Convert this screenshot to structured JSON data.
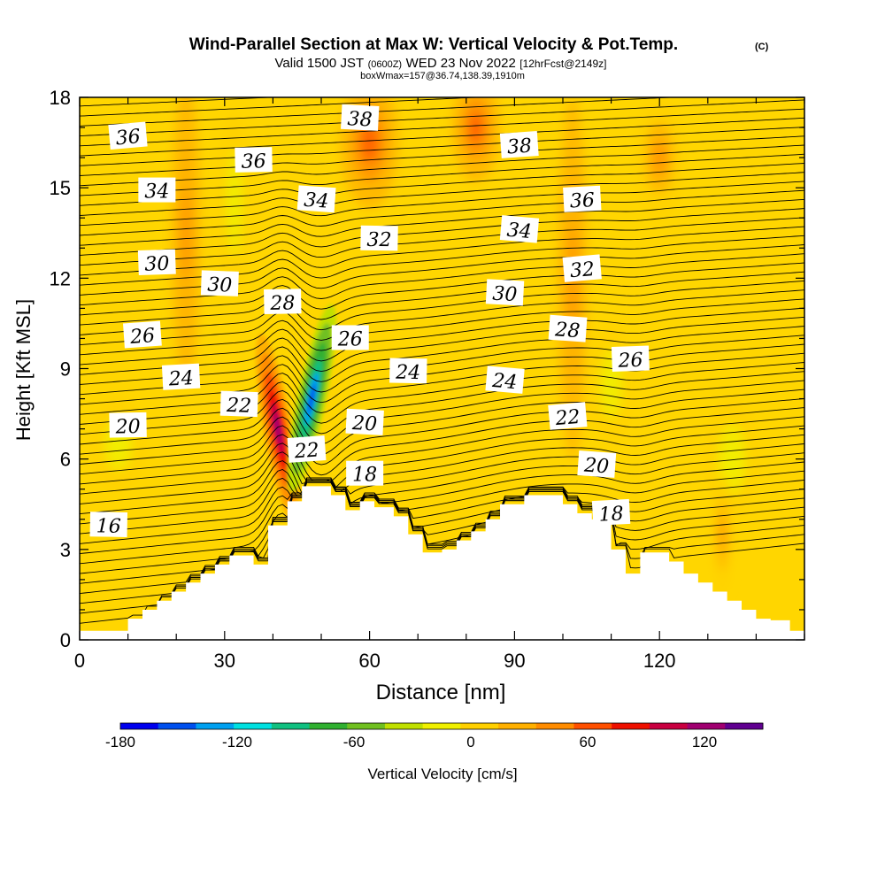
{
  "chart_data": {
    "type": "heatmap",
    "title": "Wind-Parallel Section at Max W: Vertical Velocity & Pot.Temp.",
    "title_mark": "(C)",
    "subtitle": {
      "valid_prefix": "Valid 1500 JST",
      "utc": "(0600Z)",
      "date": "WED 23 Nov 2022",
      "forecast": "[12hrFcst@2149z]"
    },
    "subtitle2": "boxWmax=157@36.74,138.39,1910m",
    "xlabel": "Distance [nm]",
    "ylabel": "Height [Kft MSL]",
    "xlim": [
      0,
      150
    ],
    "ylim": [
      0,
      18
    ],
    "xticks": [
      0,
      30,
      60,
      90,
      120
    ],
    "yticks": [
      0,
      3,
      6,
      9,
      12,
      15,
      18
    ],
    "colorbar": {
      "label": "Vertical Velocity [cm/s]",
      "range": [
        -180,
        150
      ],
      "ticks": [
        -180,
        -120,
        -60,
        0,
        60,
        120
      ],
      "colors": [
        "#0000ee",
        "#0050ee",
        "#00a0f0",
        "#00e0e0",
        "#10c080",
        "#30b030",
        "#70c020",
        "#c0e000",
        "#f0f000",
        "#ffd000",
        "#ffb000",
        "#ff8c00",
        "#ff5000",
        "#ee1000",
        "#c80040",
        "#a00070",
        "#600090"
      ]
    },
    "terrain": [
      [
        0,
        0.3
      ],
      [
        10,
        0.3
      ],
      [
        10,
        0.7
      ],
      [
        13,
        0.7
      ],
      [
        13,
        1.0
      ],
      [
        16,
        1.0
      ],
      [
        16,
        1.3
      ],
      [
        19,
        1.3
      ],
      [
        19,
        1.6
      ],
      [
        22,
        1.6
      ],
      [
        22,
        1.9
      ],
      [
        25,
        1.9
      ],
      [
        25,
        2.2
      ],
      [
        28,
        2.2
      ],
      [
        28,
        2.5
      ],
      [
        31,
        2.5
      ],
      [
        31,
        2.8
      ],
      [
        36,
        2.8
      ],
      [
        36,
        2.5
      ],
      [
        39,
        2.5
      ],
      [
        39,
        3.8
      ],
      [
        43,
        3.8
      ],
      [
        43,
        4.6
      ],
      [
        46,
        4.6
      ],
      [
        46,
        5.1
      ],
      [
        52,
        5.1
      ],
      [
        52,
        4.8
      ],
      [
        55,
        4.8
      ],
      [
        55,
        4.3
      ],
      [
        58,
        4.3
      ],
      [
        58,
        4.6
      ],
      [
        61,
        4.6
      ],
      [
        61,
        4.4
      ],
      [
        65,
        4.4
      ],
      [
        65,
        4.1
      ],
      [
        68,
        4.1
      ],
      [
        68,
        3.5
      ],
      [
        71,
        3.5
      ],
      [
        71,
        2.9
      ],
      [
        75,
        2.9
      ],
      [
        75,
        3.0
      ],
      [
        78,
        3.0
      ],
      [
        78,
        3.3
      ],
      [
        81,
        3.3
      ],
      [
        81,
        3.6
      ],
      [
        84,
        3.6
      ],
      [
        84,
        4.0
      ],
      [
        87,
        4.0
      ],
      [
        87,
        4.5
      ],
      [
        92,
        4.5
      ],
      [
        92,
        4.8
      ],
      [
        100,
        4.8
      ],
      [
        100,
        4.5
      ],
      [
        103,
        4.5
      ],
      [
        103,
        4.2
      ],
      [
        106,
        4.2
      ],
      [
        106,
        4.0
      ],
      [
        110,
        4.0
      ],
      [
        110,
        3.0
      ],
      [
        113,
        3.0
      ],
      [
        113,
        2.2
      ],
      [
        116,
        2.2
      ],
      [
        116,
        2.9
      ],
      [
        122,
        2.9
      ],
      [
        122,
        2.6
      ],
      [
        125,
        2.6
      ],
      [
        125,
        2.2
      ],
      [
        128,
        2.2
      ],
      [
        128,
        1.9
      ],
      [
        131,
        1.9
      ],
      [
        131,
        1.6
      ],
      [
        134,
        1.6
      ],
      [
        134,
        1.3
      ],
      [
        137,
        1.3
      ],
      [
        137,
        1.0
      ],
      [
        140,
        1.0
      ],
      [
        140,
        0.7
      ],
      [
        143,
        0.7
      ],
      [
        143,
        0.65
      ],
      [
        147,
        0.65
      ],
      [
        147,
        0.3
      ],
      [
        150,
        0.3
      ]
    ],
    "w_features": [
      {
        "x": 41,
        "y": 7.0,
        "rx": 3.0,
        "ry": 3.2,
        "w": 120
      },
      {
        "x": 48,
        "y": 8.0,
        "rx": 3.0,
        "ry": 3.2,
        "w": -150
      },
      {
        "x": 60,
        "y": 16.5,
        "rx": 6,
        "ry": 2.2,
        "w": 60
      },
      {
        "x": 82,
        "y": 17.0,
        "rx": 5,
        "ry": 1.8,
        "w": 70
      },
      {
        "x": 120,
        "y": 16.0,
        "rx": 5,
        "ry": 2.0,
        "w": 40
      },
      {
        "x": 22,
        "y": 13.5,
        "rx": 3,
        "ry": 5.0,
        "w": 45
      },
      {
        "x": 32,
        "y": 14.5,
        "rx": 3,
        "ry": 3.0,
        "w": -10
      },
      {
        "x": 102,
        "y": 12.0,
        "rx": 3,
        "ry": 6.0,
        "w": 45
      },
      {
        "x": 110,
        "y": 8.5,
        "rx": 4,
        "ry": 2.0,
        "w": -15
      },
      {
        "x": 135,
        "y": 6.0,
        "rx": 5,
        "ry": 2.0,
        "w": -10
      },
      {
        "x": 8,
        "y": 6.5,
        "rx": 5,
        "ry": 1.5,
        "w": -10
      },
      {
        "x": 133,
        "y": 3.5,
        "rx": 2,
        "ry": 2.0,
        "w": 40
      }
    ],
    "theta_labels": [
      {
        "text": "36",
        "x": 10,
        "y": 16.7
      },
      {
        "text": "36",
        "x": 36,
        "y": 15.9
      },
      {
        "text": "38",
        "x": 58,
        "y": 17.3
      },
      {
        "text": "38",
        "x": 91,
        "y": 16.4
      },
      {
        "text": "34",
        "x": 16,
        "y": 14.9
      },
      {
        "text": "34",
        "x": 49,
        "y": 14.6
      },
      {
        "text": "36",
        "x": 104,
        "y": 14.6
      },
      {
        "text": "32",
        "x": 62,
        "y": 13.3
      },
      {
        "text": "34",
        "x": 91,
        "y": 13.6
      },
      {
        "text": "30",
        "x": 16,
        "y": 12.5
      },
      {
        "text": "30",
        "x": 29,
        "y": 11.8
      },
      {
        "text": "32",
        "x": 104,
        "y": 12.3
      },
      {
        "text": "28",
        "x": 42,
        "y": 11.2
      },
      {
        "text": "30",
        "x": 88,
        "y": 11.5
      },
      {
        "text": "26",
        "x": 13,
        "y": 10.1
      },
      {
        "text": "26",
        "x": 56,
        "y": 10.0
      },
      {
        "text": "28",
        "x": 101,
        "y": 10.3
      },
      {
        "text": "24",
        "x": 21,
        "y": 8.7
      },
      {
        "text": "24",
        "x": 68,
        "y": 8.9
      },
      {
        "text": "24",
        "x": 88,
        "y": 8.6
      },
      {
        "text": "26",
        "x": 114,
        "y": 9.3
      },
      {
        "text": "22",
        "x": 33,
        "y": 7.8
      },
      {
        "text": "22",
        "x": 101,
        "y": 7.4
      },
      {
        "text": "20",
        "x": 10,
        "y": 7.1
      },
      {
        "text": "20",
        "x": 59,
        "y": 7.2
      },
      {
        "text": "22",
        "x": 47,
        "y": 6.3
      },
      {
        "text": "18",
        "x": 59,
        "y": 5.5
      },
      {
        "text": "20",
        "x": 107,
        "y": 5.8
      },
      {
        "text": "18",
        "x": 110,
        "y": 4.2
      },
      {
        "text": "16",
        "x": 6,
        "y": 3.8
      }
    ]
  }
}
